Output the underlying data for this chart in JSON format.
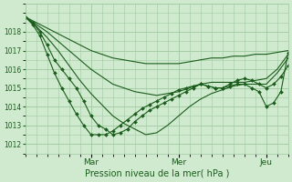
{
  "bg_color": "#d0ead0",
  "grid_color": "#a0c8a0",
  "line_color": "#1a5c1a",
  "marker_color": "#1a5c1a",
  "title": "Pression niveau de la mer( hPa )",
  "ylim": [
    1011.5,
    1019.5
  ],
  "yticks": [
    1012,
    1013,
    1014,
    1015,
    1016,
    1017,
    1018
  ],
  "xlim": [
    0,
    72
  ],
  "xtick_positions": [
    18,
    42,
    66
  ],
  "xtick_labels": [
    "Mar",
    "Mer",
    "Jeu"
  ],
  "series": [
    {
      "x": [
        0,
        3,
        6,
        9,
        12,
        15,
        18,
        21,
        24,
        27,
        30,
        33,
        36,
        39,
        42,
        45,
        48,
        51,
        54,
        57,
        60,
        63,
        66,
        69,
        72
      ],
      "y": [
        1018.8,
        1018.5,
        1018.2,
        1017.9,
        1017.6,
        1017.3,
        1017.0,
        1016.8,
        1016.6,
        1016.5,
        1016.4,
        1016.3,
        1016.3,
        1016.3,
        1016.3,
        1016.4,
        1016.5,
        1016.6,
        1016.6,
        1016.7,
        1016.7,
        1016.8,
        1016.8,
        1016.9,
        1017.0
      ],
      "marker": false
    },
    {
      "x": [
        0,
        3,
        6,
        9,
        12,
        15,
        18,
        21,
        24,
        27,
        30,
        33,
        36,
        39,
        42,
        45,
        48,
        51,
        54,
        57,
        60,
        63,
        66,
        69,
        72
      ],
      "y": [
        1018.8,
        1018.4,
        1018.0,
        1017.5,
        1017.0,
        1016.5,
        1016.0,
        1015.6,
        1015.2,
        1015.0,
        1014.8,
        1014.7,
        1014.6,
        1014.7,
        1014.8,
        1015.0,
        1015.2,
        1015.3,
        1015.3,
        1015.3,
        1015.3,
        1015.4,
        1015.5,
        1016.0,
        1016.8
      ],
      "marker": false
    },
    {
      "x": [
        0,
        3,
        6,
        9,
        12,
        15,
        18,
        21,
        24,
        27,
        30,
        33,
        36,
        39,
        42,
        45,
        48,
        51,
        54,
        57,
        60,
        63,
        66,
        69,
        72
      ],
      "y": [
        1018.8,
        1018.3,
        1017.7,
        1017.0,
        1016.2,
        1015.4,
        1014.7,
        1014.1,
        1013.5,
        1013.1,
        1012.8,
        1012.5,
        1012.6,
        1013.0,
        1013.5,
        1014.0,
        1014.4,
        1014.7,
        1014.9,
        1015.1,
        1015.2,
        1015.2,
        1015.2,
        1015.8,
        1016.6
      ],
      "marker": false
    },
    {
      "x": [
        0,
        2,
        4,
        6,
        8,
        10,
        12,
        14,
        16,
        18,
        20,
        22,
        24,
        26,
        28,
        30,
        32,
        34,
        36,
        38,
        40,
        42,
        44,
        46,
        48,
        50,
        52,
        54,
        56,
        58,
        60,
        62,
        64,
        66,
        68,
        70,
        72
      ],
      "y": [
        1018.8,
        1018.5,
        1018.0,
        1017.3,
        1016.5,
        1016.0,
        1015.5,
        1015.0,
        1014.3,
        1013.5,
        1013.0,
        1012.8,
        1012.5,
        1012.6,
        1012.8,
        1013.2,
        1013.5,
        1013.8,
        1014.0,
        1014.2,
        1014.4,
        1014.6,
        1014.8,
        1015.0,
        1015.2,
        1015.1,
        1015.0,
        1015.0,
        1015.2,
        1015.4,
        1015.5,
        1015.4,
        1015.2,
        1015.0,
        1015.2,
        1015.6,
        1016.2
      ],
      "marker": true
    },
    {
      "x": [
        0,
        2,
        4,
        6,
        8,
        10,
        12,
        14,
        16,
        18,
        20,
        22,
        24,
        26,
        28,
        30,
        32,
        34,
        36,
        38,
        40,
        42,
        44,
        46,
        48,
        50,
        52,
        54,
        56,
        58,
        60,
        62,
        64,
        66,
        68,
        70,
        72
      ],
      "y": [
        1018.8,
        1018.4,
        1017.8,
        1016.8,
        1015.8,
        1015.0,
        1014.3,
        1013.6,
        1013.0,
        1012.5,
        1012.5,
        1012.5,
        1012.7,
        1013.0,
        1013.3,
        1013.6,
        1013.9,
        1014.1,
        1014.3,
        1014.5,
        1014.7,
        1014.9,
        1015.0,
        1015.1,
        1015.2,
        1015.1,
        1015.0,
        1015.0,
        1015.1,
        1015.2,
        1015.2,
        1015.0,
        1014.8,
        1014.0,
        1014.2,
        1014.8,
        1016.9
      ],
      "marker": true
    }
  ],
  "figsize": [
    3.2,
    2.0
  ],
  "dpi": 100
}
